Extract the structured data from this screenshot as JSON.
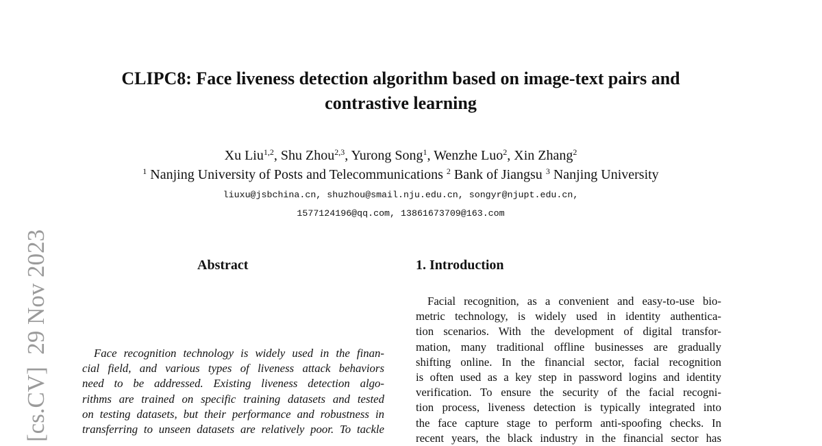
{
  "paper": {
    "arxiv_stamp": "[cs.CV]  29 Nov 2023",
    "title_lines": [
      "CLIPC8: Face liveness detection algorithm based on image-text pairs and",
      "contrastive learning"
    ],
    "authors": [
      {
        "name": "Xu Liu",
        "aff": "1,2"
      },
      {
        "name": "Shu Zhou",
        "aff": "2,3"
      },
      {
        "name": "Yurong Song",
        "aff": "1"
      },
      {
        "name": "Wenzhe Luo",
        "aff": "2"
      },
      {
        "name": "Xin Zhang",
        "aff": "2"
      }
    ],
    "affiliations": [
      {
        "num": "1",
        "name": "Nanjing University of Posts and Telecommunications"
      },
      {
        "num": "2",
        "name": "Bank of Jiangsu"
      },
      {
        "num": "3",
        "name": "Nanjing University"
      }
    ],
    "email_lines": [
      "liuxu@jsbchina.cn, shuzhou@smail.nju.edu.cn, songyr@njupt.edu.cn,",
      "1577124196@qq.com, 13861673709@163.com"
    ],
    "abstract": {
      "heading": "Abstract",
      "lines": [
        "Face recognition technology is widely used in the finan-",
        "cial field, and various types of liveness attack behaviors",
        "need to be addressed.  Existing liveness detection algo-",
        "rithms are trained on specific training datasets and tested",
        "on testing datasets, but their performance and robustness in",
        "transferring to unseen datasets are relatively poor. To tackle"
      ]
    },
    "introduction": {
      "heading": "1. Introduction",
      "lines": [
        "Facial recognition, as a convenient and easy-to-use bio-",
        "metric technology, is widely used in identity authentica-",
        "tion scenarios.  With the development of digital transfor-",
        "mation, many traditional offline businesses are gradually",
        "shifting online.  In the financial sector, facial recognition",
        "is often used as a key step in password logins and identity",
        "verification.  To ensure the security of the facial recogni-",
        "tion process, liveness detection is typically integrated into",
        "the face capture stage to perform anti-spoofing checks.  In",
        "recent years, the black industry in the financial sector has"
      ]
    }
  }
}
